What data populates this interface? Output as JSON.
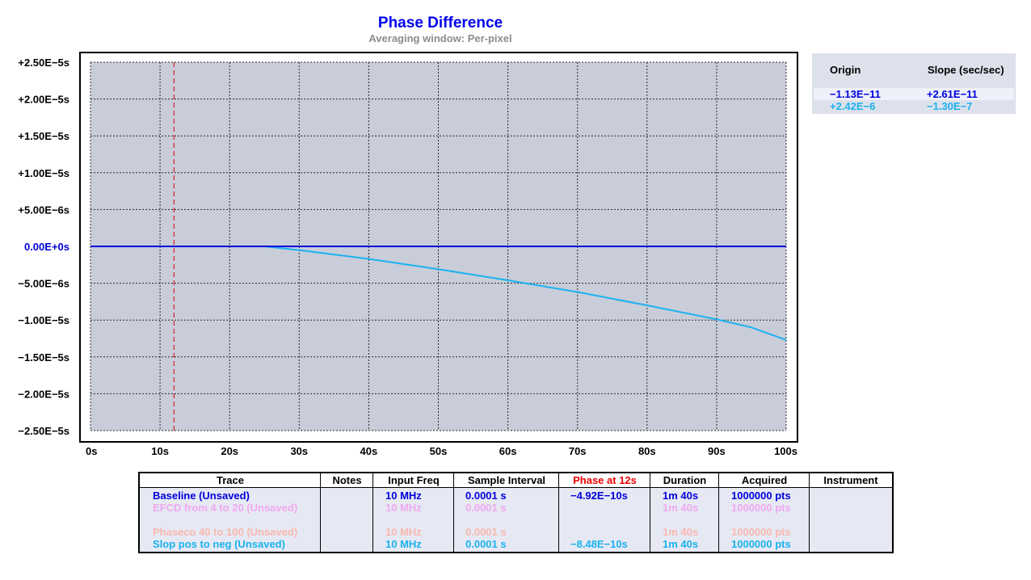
{
  "chart_data": {
    "type": "line",
    "title": "Phase Difference",
    "subtitle": "Averaging window: Per-pixel",
    "xlabel": "",
    "ylabel": "",
    "xlim": [
      0,
      100
    ],
    "ylim": [
      -2.5e-05,
      2.5e-05
    ],
    "grid": true,
    "x_ticks": [
      0,
      10,
      20,
      30,
      40,
      50,
      60,
      70,
      80,
      90,
      100
    ],
    "x_tick_labels": [
      "0s",
      "10s",
      "20s",
      "30s",
      "40s",
      "50s",
      "60s",
      "70s",
      "80s",
      "90s",
      "100s"
    ],
    "y_ticks": [
      2.5e-05,
      2e-05,
      1.5e-05,
      1e-05,
      5e-06,
      0,
      -5e-06,
      -1e-05,
      -1.5e-05,
      -2e-05,
      -2.5e-05
    ],
    "y_tick_labels": [
      "+2.50E−5s",
      "+2.00E−5s",
      "+1.50E−5s",
      "+1.00E−5s",
      "+5.00E−6s",
      "0.00E+0s",
      "−5.00E−6s",
      "−1.00E−5s",
      "−1.50E−5s",
      "−2.00E−5s",
      "−2.50E−5s"
    ],
    "marker_x": 12,
    "series": [
      {
        "name": "Baseline (Unsaved)",
        "color": "#0000dd",
        "x": [
          0,
          100
        ],
        "y": [
          0,
          0
        ]
      },
      {
        "name": "Slop pos to neg (Unsaved)",
        "color": "#1ab2f0",
        "x": [
          0,
          10,
          20,
          25,
          30,
          40,
          50,
          60,
          70,
          80,
          90,
          95,
          100
        ],
        "y": [
          0,
          0,
          0,
          0,
          -5e-07,
          -1.7e-06,
          -3.1e-06,
          -4.6e-06,
          -6.2e-06,
          -8e-06,
          -9.9e-06,
          -1.1e-05,
          -1.27e-05
        ]
      }
    ]
  },
  "fit_panel": {
    "headers": {
      "origin": "Origin",
      "slope": "Slope (sec/sec)"
    },
    "rows": [
      {
        "origin": "−1.13E−11",
        "slope": "+2.61E−11",
        "color": "#0000dd"
      },
      {
        "origin": "+2.42E−6",
        "slope": "−1.30E−7",
        "color": "#1ab2f0"
      }
    ]
  },
  "trace_table": {
    "headers": [
      "Trace",
      "Notes",
      "Input Freq",
      "Sample Interval",
      "Phase at 12s",
      "Duration",
      "Acquired",
      "Instrument"
    ],
    "phase_header_color": "#ee0000",
    "rows": [
      {
        "trace": "Baseline (Unsaved)",
        "notes": "",
        "freq": "10 MHz",
        "interval": "0.0001 s",
        "phase": "−4.92E−10s",
        "duration": "1m 40s",
        "acquired": "1000000 pts",
        "instrument": "",
        "color": "#0000dd"
      },
      {
        "trace": "EFCD from 4 to 20 (Unsaved)",
        "notes": "",
        "freq": "10 MHz",
        "interval": "0.0001 s",
        "phase": "",
        "duration": "1m 40s",
        "acquired": "1000000 pts",
        "instrument": "",
        "color": "#f0a8f0"
      },
      {
        "trace": "",
        "notes": "",
        "freq": "",
        "interval": "",
        "phase": "",
        "duration": "",
        "acquired": "",
        "instrument": "",
        "color": "#c8f0c0"
      },
      {
        "trace": "Phaseco 40 to 100 (Unsaved)",
        "notes": "",
        "freq": "10 MHz",
        "interval": "0.0001 s",
        "phase": "",
        "duration": "1m 40s",
        "acquired": "1000000 pts",
        "instrument": "",
        "color": "#f8b8b0"
      },
      {
        "trace": "Slop pos to neg (Unsaved)",
        "notes": "",
        "freq": "10 MHz",
        "interval": "0.0001 s",
        "phase": "−8.48E−10s",
        "duration": "1m 40s",
        "acquired": "1000000 pts",
        "instrument": "",
        "color": "#1ab2f0"
      }
    ]
  }
}
